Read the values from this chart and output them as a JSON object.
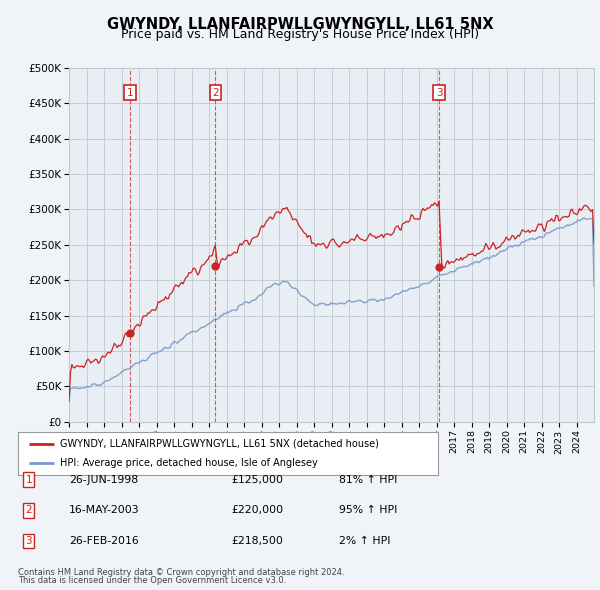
{
  "title": "GWYNDY, LLANFAIRPWLLGWYNGYLL, LL61 5NX",
  "subtitle": "Price paid vs. HM Land Registry's House Price Index (HPI)",
  "legend_line1": "GWYNDY, LLANFAIRPWLLGWYNGYLL, LL61 5NX (detached house)",
  "legend_line2": "HPI: Average price, detached house, Isle of Anglesey",
  "footnote1": "Contains HM Land Registry data © Crown copyright and database right 2024.",
  "footnote2": "This data is licensed under the Open Government Licence v3.0.",
  "transactions": [
    {
      "num": 1,
      "date": "26-JUN-1998",
      "price": 125000,
      "hpi_pct": "81% ↑ HPI",
      "x": 1998.48
    },
    {
      "num": 2,
      "date": "16-MAY-2003",
      "price": 220000,
      "hpi_pct": "95% ↑ HPI",
      "x": 2003.37
    },
    {
      "num": 3,
      "date": "26-FEB-2016",
      "price": 218500,
      "hpi_pct": "2% ↑ HPI",
      "x": 2016.15
    }
  ],
  "ylim": [
    0,
    500000
  ],
  "yticks": [
    0,
    50000,
    100000,
    150000,
    200000,
    250000,
    300000,
    350000,
    400000,
    450000,
    500000
  ],
  "bg_color": "#f0f4f8",
  "plot_bg_color": "#e8eef4",
  "grid_color": "#c0c8d0",
  "red_color": "#cc2222",
  "blue_color": "#7799cc",
  "dashed_color": "#cc2222",
  "title_fontsize": 10.5,
  "subtitle_fontsize": 9
}
